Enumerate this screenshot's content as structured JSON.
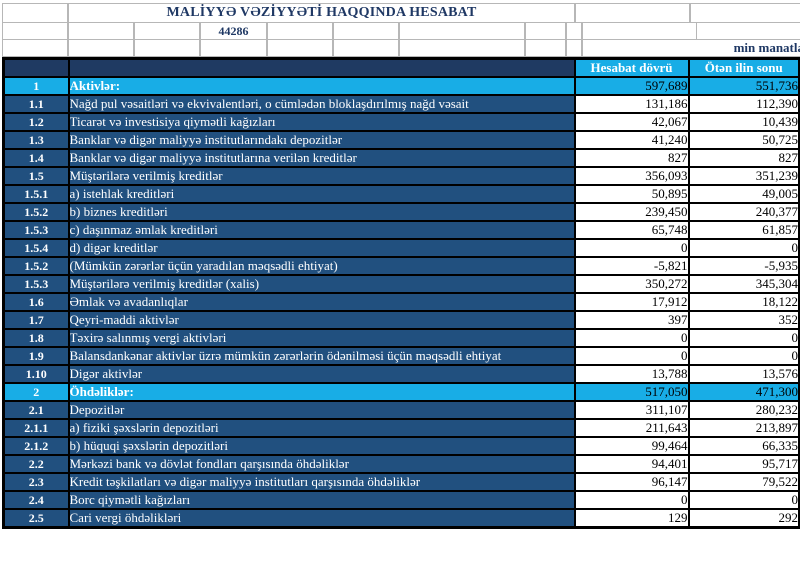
{
  "header": {
    "title": "MALİYYƏ VƏZİYYƏTİ HAQQINDA HESABAT",
    "date_serial": "44286",
    "unit_note": "min manatla"
  },
  "table": {
    "columns": [
      "Hesabat dövrü",
      "Ötən ilin sonu"
    ],
    "rows": [
      {
        "no": "1",
        "label": "Aktivlər:",
        "current": "597,689",
        "previous": "551,736",
        "type": "section"
      },
      {
        "no": "1.1",
        "label": "Nağd pul vəsaitləri və  ekvivalentləri, o cümlədən bloklaşdırılmış nağd vəsait",
        "current": "131,186",
        "previous": "112,390",
        "type": "item"
      },
      {
        "no": "1.2",
        "label": "Ticarət və investisiya qiymətli kağızları",
        "current": "42,067",
        "previous": "10,439",
        "type": "item"
      },
      {
        "no": "1.3",
        "label": "Banklar və digər maliyyə institutlarındakı depozitlər",
        "current": "41,240",
        "previous": "50,725",
        "type": "item"
      },
      {
        "no": "1.4",
        "label": "Banklar və digər maliyyə institutlarına verilən kreditlər",
        "current": "827",
        "previous": "827",
        "type": "item"
      },
      {
        "no": "1.5",
        "label": "Müştərilərə verilmiş kreditlər",
        "current": "356,093",
        "previous": "351,239",
        "type": "item"
      },
      {
        "no": "1.5.1",
        "label": "a) istehlak kreditləri",
        "current": "50,895",
        "previous": "49,005",
        "type": "item"
      },
      {
        "no": "1.5.2",
        "label": "b) biznes kreditləri",
        "current": "239,450",
        "previous": "240,377",
        "type": "item"
      },
      {
        "no": "1.5.3",
        "label": "c) daşınmaz əmlak kreditləri",
        "current": "65,748",
        "previous": "61,857",
        "type": "item"
      },
      {
        "no": "1.5.4",
        "label": "d) digər kreditlər",
        "current": "0",
        "previous": "0",
        "type": "item"
      },
      {
        "no": "1.5.2",
        "label": "(Mümkün zərərlər üçün yaradılan məqsədli ehtiyat)",
        "current": "-5,821",
        "previous": "-5,935",
        "type": "item"
      },
      {
        "no": "1.5.3",
        "label": "Müştərilərə verilmiş kreditlər (xalis)",
        "current": "350,272",
        "previous": "345,304",
        "type": "item"
      },
      {
        "no": "1.6",
        "label": "Əmlak və avadanlıqlar",
        "current": "17,912",
        "previous": "18,122",
        "type": "item"
      },
      {
        "no": "1.7",
        "label": "Qeyri-maddi aktivlər",
        "current": "397",
        "previous": "352",
        "type": "item"
      },
      {
        "no": "1.8",
        "label": "Təxirə salınmış vergi aktivləri",
        "current": "0",
        "previous": "0",
        "type": "item"
      },
      {
        "no": "1.9",
        "label": "Balansdankənar aktivlər üzrə mümkün zərərlərin ödənilməsi üçün məqsədli ehtiyat",
        "current": "0",
        "previous": "0",
        "type": "item"
      },
      {
        "no": "1.10",
        "label": "Digər aktivlər",
        "current": "13,788",
        "previous": "13,576",
        "type": "item"
      },
      {
        "no": "2",
        "label": "Öhdəliklər:",
        "current": "517,050",
        "previous": "471,300",
        "type": "section"
      },
      {
        "no": "2.1",
        "label": "Depozitlər",
        "current": "311,107",
        "previous": "280,232",
        "type": "item"
      },
      {
        "no": "2.1.1",
        "label": "a) fiziki şəxslərin depozitləri",
        "current": "211,643",
        "previous": "213,897",
        "type": "item"
      },
      {
        "no": "2.1.2",
        "label": "b) hüquqi şəxslərin depozitləri",
        "current": "99,464",
        "previous": "66,335",
        "type": "item"
      },
      {
        "no": "2.2",
        "label": "Mərkəzi bank və dövlət fondları qarşısında öhdəliklər",
        "current": "94,401",
        "previous": "95,717",
        "type": "item"
      },
      {
        "no": "2.3",
        "label": "Kredit təşkilatları və digər maliyyə institutları qarşısında öhdəliklər",
        "current": "96,147",
        "previous": "79,522",
        "type": "item"
      },
      {
        "no": "2.4",
        "label": "Borc qiymətli kağızları",
        "current": "0",
        "previous": "0",
        "type": "item"
      },
      {
        "no": "2.5",
        "label": "Cari vergi öhdəlikləri",
        "current": "129",
        "previous": "292",
        "type": "item"
      }
    ]
  },
  "colors": {
    "accent_cyan": "#18ade6",
    "row_navy": "#21507f",
    "header_navy": "#1f3a62",
    "title_navy": "#1f3864",
    "grid_gray": "#b7b7b7"
  }
}
